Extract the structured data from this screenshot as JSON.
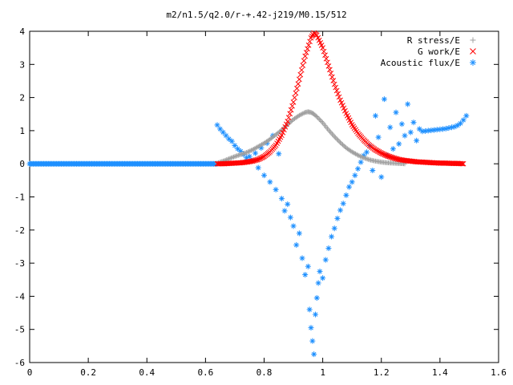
{
  "chart_data": {
    "type": "scatter",
    "title": "m2/n1.5/q2.0/r-+.42-j219/M0.15/512",
    "xlim": [
      0,
      1.6
    ],
    "ylim": [
      -6,
      4
    ],
    "x_ticks": [
      "0",
      "0.2",
      "0.4",
      "0.6",
      "0.8",
      "1",
      "1.2",
      "1.4",
      "1.6"
    ],
    "y_ticks": [
      "-6",
      "-5",
      "-4",
      "-3",
      "-2",
      "-1",
      "0",
      "1",
      "2",
      "3",
      "4"
    ],
    "legend_position": "top-right",
    "grid": false,
    "series": [
      {
        "name": "R stress/E",
        "marker": "plus",
        "color": "#a0a0a0",
        "points": [
          [
            0.64,
            0.02
          ],
          [
            0.66,
            0.08
          ],
          [
            0.68,
            0.15
          ],
          [
            0.7,
            0.22
          ],
          [
            0.72,
            0.28
          ],
          [
            0.74,
            0.34
          ],
          [
            0.76,
            0.42
          ],
          [
            0.78,
            0.52
          ],
          [
            0.8,
            0.62
          ],
          [
            0.82,
            0.74
          ],
          [
            0.84,
            0.88
          ],
          [
            0.86,
            1.02
          ],
          [
            0.88,
            1.18
          ],
          [
            0.9,
            1.34
          ],
          [
            0.92,
            1.46
          ],
          [
            0.94,
            1.55
          ],
          [
            0.95,
            1.57
          ],
          [
            0.96,
            1.55
          ],
          [
            0.97,
            1.5
          ],
          [
            0.98,
            1.42
          ],
          [
            1.0,
            1.24
          ],
          [
            1.02,
            1.02
          ],
          [
            1.04,
            0.82
          ],
          [
            1.06,
            0.64
          ],
          [
            1.08,
            0.48
          ],
          [
            1.1,
            0.36
          ],
          [
            1.12,
            0.26
          ],
          [
            1.14,
            0.18
          ],
          [
            1.16,
            0.12
          ],
          [
            1.18,
            0.08
          ],
          [
            1.2,
            0.05
          ],
          [
            1.22,
            0.03
          ],
          [
            1.24,
            0.02
          ],
          [
            1.26,
            0.01
          ],
          [
            1.28,
            0.0
          ]
        ]
      },
      {
        "name": "G work/E",
        "marker": "cross",
        "color": "#ff0000",
        "points": [
          [
            0.64,
            0.0
          ],
          [
            0.66,
            0.0
          ],
          [
            0.68,
            0.01
          ],
          [
            0.7,
            0.02
          ],
          [
            0.72,
            0.03
          ],
          [
            0.74,
            0.05
          ],
          [
            0.76,
            0.08
          ],
          [
            0.78,
            0.13
          ],
          [
            0.8,
            0.22
          ],
          [
            0.82,
            0.36
          ],
          [
            0.84,
            0.56
          ],
          [
            0.86,
            0.86
          ],
          [
            0.88,
            1.28
          ],
          [
            0.9,
            1.86
          ],
          [
            0.92,
            2.55
          ],
          [
            0.94,
            3.25
          ],
          [
            0.96,
            3.8
          ],
          [
            0.97,
            3.95
          ],
          [
            0.98,
            3.88
          ],
          [
            1.0,
            3.5
          ],
          [
            1.02,
            2.95
          ],
          [
            1.04,
            2.4
          ],
          [
            1.06,
            1.92
          ],
          [
            1.08,
            1.52
          ],
          [
            1.1,
            1.18
          ],
          [
            1.12,
            0.92
          ],
          [
            1.14,
            0.72
          ],
          [
            1.16,
            0.55
          ],
          [
            1.18,
            0.42
          ],
          [
            1.2,
            0.32
          ],
          [
            1.22,
            0.24
          ],
          [
            1.24,
            0.18
          ],
          [
            1.26,
            0.13
          ],
          [
            1.28,
            0.1
          ],
          [
            1.3,
            0.08
          ],
          [
            1.32,
            0.06
          ],
          [
            1.34,
            0.05
          ],
          [
            1.36,
            0.04
          ],
          [
            1.38,
            0.03
          ],
          [
            1.4,
            0.02
          ],
          [
            1.42,
            0.02
          ],
          [
            1.44,
            0.01
          ],
          [
            1.46,
            0.01
          ],
          [
            1.48,
            0.0
          ]
        ]
      },
      {
        "name": "Acoustic flux/E",
        "marker": "star",
        "color": "#1e90ff",
        "points": [
          [
            0.64,
            1.17
          ],
          [
            0.65,
            1.05
          ],
          [
            0.66,
            0.95
          ],
          [
            0.67,
            0.85
          ],
          [
            0.68,
            0.75
          ],
          [
            0.69,
            0.68
          ],
          [
            0.7,
            0.55
          ],
          [
            0.71,
            0.45
          ],
          [
            0.72,
            0.38
          ],
          [
            0.73,
            0.28
          ],
          [
            0.74,
            0.18
          ],
          [
            0.75,
            0.22
          ],
          [
            0.76,
            0.1
          ],
          [
            0.77,
            0.32
          ],
          [
            0.78,
            -0.12
          ],
          [
            0.79,
            0.48
          ],
          [
            0.8,
            -0.35
          ],
          [
            0.81,
            0.62
          ],
          [
            0.82,
            -0.55
          ],
          [
            0.83,
            0.85
          ],
          [
            0.84,
            -0.78
          ],
          [
            0.85,
            0.3
          ],
          [
            0.86,
            -1.05
          ],
          [
            0.87,
            -1.42
          ],
          [
            0.88,
            -1.22
          ],
          [
            0.89,
            -1.62
          ],
          [
            0.9,
            -1.88
          ],
          [
            0.91,
            -2.45
          ],
          [
            0.92,
            -2.1
          ],
          [
            0.93,
            -2.85
          ],
          [
            0.94,
            -3.35
          ],
          [
            0.95,
            -3.1
          ],
          [
            0.955,
            -4.4
          ],
          [
            0.96,
            -4.95
          ],
          [
            0.965,
            -5.35
          ],
          [
            0.97,
            -5.75
          ],
          [
            0.975,
            -4.55
          ],
          [
            0.98,
            -4.05
          ],
          [
            0.985,
            -3.6
          ],
          [
            0.99,
            -3.25
          ],
          [
            1.0,
            -3.45
          ],
          [
            1.01,
            -2.9
          ],
          [
            1.02,
            -2.55
          ],
          [
            1.03,
            -2.2
          ],
          [
            1.04,
            -1.95
          ],
          [
            1.05,
            -1.65
          ],
          [
            1.06,
            -1.4
          ],
          [
            1.07,
            -1.2
          ],
          [
            1.08,
            -0.95
          ],
          [
            1.09,
            -0.7
          ],
          [
            1.1,
            -0.55
          ],
          [
            1.11,
            -0.35
          ],
          [
            1.12,
            -0.15
          ],
          [
            1.13,
            0.05
          ],
          [
            1.14,
            0.25
          ],
          [
            1.15,
            0.35
          ],
          [
            1.16,
            0.55
          ],
          [
            1.17,
            -0.2
          ],
          [
            1.18,
            1.45
          ],
          [
            1.19,
            0.8
          ],
          [
            1.2,
            -0.4
          ],
          [
            1.21,
            1.95
          ],
          [
            1.22,
            0.25
          ],
          [
            1.23,
            1.1
          ],
          [
            1.24,
            0.45
          ],
          [
            1.25,
            1.55
          ],
          [
            1.26,
            0.6
          ],
          [
            1.27,
            1.2
          ],
          [
            1.28,
            0.85
          ],
          [
            1.29,
            1.8
          ],
          [
            1.3,
            0.95
          ],
          [
            1.31,
            1.25
          ],
          [
            1.32,
            0.7
          ],
          [
            1.33,
            1.05
          ],
          [
            1.34,
            0.98
          ],
          [
            1.35,
            0.99
          ],
          [
            1.36,
            1.0
          ],
          [
            1.37,
            1.01
          ],
          [
            1.38,
            1.02
          ],
          [
            1.39,
            1.03
          ],
          [
            1.4,
            1.04
          ],
          [
            1.41,
            1.05
          ],
          [
            1.42,
            1.06
          ],
          [
            1.43,
            1.08
          ],
          [
            1.44,
            1.1
          ],
          [
            1.45,
            1.12
          ],
          [
            1.46,
            1.16
          ],
          [
            1.47,
            1.22
          ],
          [
            1.48,
            1.32
          ],
          [
            1.49,
            1.45
          ]
        ]
      }
    ],
    "flux_baseline": {
      "from": 0.0,
      "to": 0.64,
      "value": 0.0
    }
  }
}
